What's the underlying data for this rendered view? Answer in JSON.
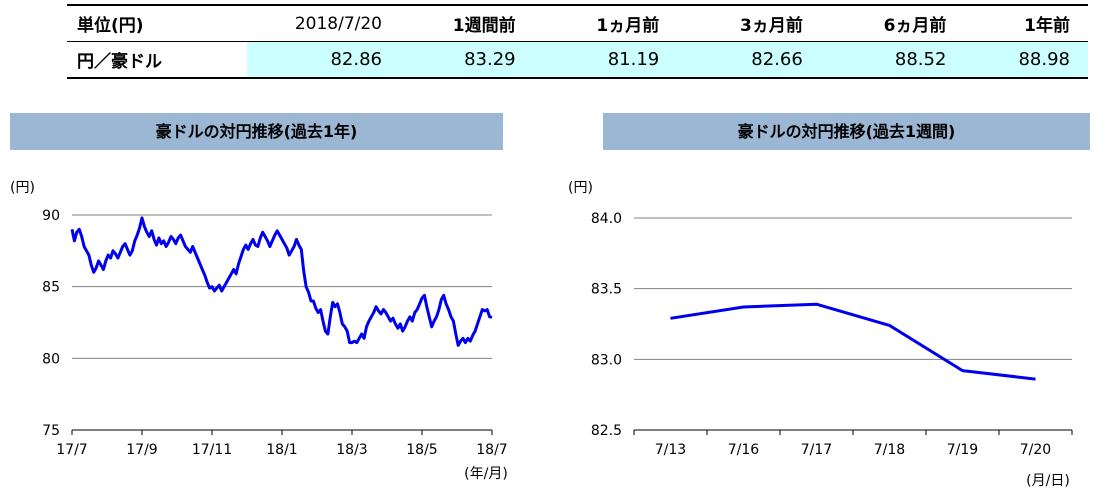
{
  "summary": {
    "headers": [
      "単位(円)",
      "2018/7/20",
      "1週間前",
      "1ヵ月前",
      "3ヵ月前",
      "6ヵ月前",
      "1年前"
    ],
    "row_label": "円／豪ドル",
    "values": [
      "82.86",
      "83.29",
      "81.19",
      "82.66",
      "88.52",
      "88.98"
    ]
  },
  "colors": {
    "line": "#0000ee",
    "title_bg": "#9bb7d4",
    "highlight": "#ccffff",
    "grid": "#808080"
  },
  "chart_data": [
    {
      "type": "line",
      "title": "豪ドルの対円推移(過去1年)",
      "unit_label": "(円)",
      "xlabel": "(年/月)",
      "x_ticks": [
        "17/7",
        "17/9",
        "17/11",
        "18/1",
        "18/3",
        "18/5",
        "18/7"
      ],
      "y_ticks": [
        "90",
        "85",
        "80",
        "75"
      ],
      "ylim": [
        75,
        90
      ],
      "grid": true,
      "series": [
        {
          "values": [
            89.0,
            88.2,
            88.8,
            89.0,
            88.5,
            87.8,
            87.5,
            87.2,
            86.5,
            86.0,
            86.3,
            86.8,
            86.5,
            86.2,
            86.8,
            87.2,
            87.0,
            87.5,
            87.3,
            87.0,
            87.4,
            87.8,
            88.0,
            87.6,
            87.2,
            87.5,
            88.2,
            88.6,
            89.1,
            89.8,
            89.2,
            88.8,
            88.5,
            88.9,
            88.3,
            87.9,
            88.4,
            88.0,
            88.2,
            87.8,
            88.1,
            88.5,
            88.3,
            88.0,
            88.4,
            88.6,
            88.2,
            87.8,
            87.6,
            87.4,
            87.8,
            87.4,
            87.0,
            86.6,
            86.2,
            85.8,
            85.3,
            84.9,
            85.0,
            84.7,
            84.9,
            85.1,
            84.7,
            85.0,
            85.3,
            85.6,
            85.9,
            86.2,
            85.9,
            86.6,
            87.1,
            87.6,
            87.9,
            87.6,
            88.0,
            88.3,
            87.9,
            87.8,
            88.4,
            88.8,
            88.5,
            88.2,
            87.8,
            88.2,
            88.6,
            88.9,
            88.6,
            88.3,
            88.0,
            87.7,
            87.2,
            87.5,
            87.8,
            88.3,
            87.9,
            87.6,
            86.1,
            85.0,
            84.6,
            84.0,
            84.0,
            83.5,
            83.2,
            83.4,
            82.6,
            81.9,
            81.7,
            82.9,
            83.9,
            83.6,
            83.8,
            83.2,
            82.4,
            82.2,
            81.9,
            81.1,
            81.1,
            81.2,
            81.1,
            81.4,
            81.7,
            81.4,
            82.2,
            82.6,
            82.9,
            83.2,
            83.6,
            83.3,
            83.1,
            83.4,
            83.2,
            82.9,
            82.6,
            82.8,
            82.4,
            82.1,
            82.4,
            81.9,
            82.2,
            82.6,
            82.9,
            82.6,
            83.2,
            83.4,
            83.8,
            84.2,
            84.4,
            83.6,
            82.9,
            82.2,
            82.6,
            82.9,
            83.4,
            84.1,
            84.4,
            83.8,
            83.4,
            82.9,
            82.6,
            81.7,
            80.9,
            81.2,
            81.4,
            81.1,
            81.4,
            81.2,
            81.6,
            81.9,
            82.4,
            82.9,
            83.4,
            83.3,
            83.4,
            82.9,
            82.86
          ]
        }
      ]
    },
    {
      "type": "line",
      "title": "豪ドルの対円推移(過去1週間)",
      "unit_label": "(円)",
      "xlabel": "(月/日)",
      "categories": [
        "7/13",
        "7/16",
        "7/17",
        "7/18",
        "7/19",
        "7/20"
      ],
      "y_ticks": [
        "84.0",
        "83.5",
        "83.0",
        "82.5"
      ],
      "ylim": [
        82.5,
        84.0
      ],
      "grid": true,
      "series": [
        {
          "values": [
            83.29,
            83.37,
            83.39,
            83.24,
            82.92,
            82.86
          ]
        }
      ]
    }
  ]
}
